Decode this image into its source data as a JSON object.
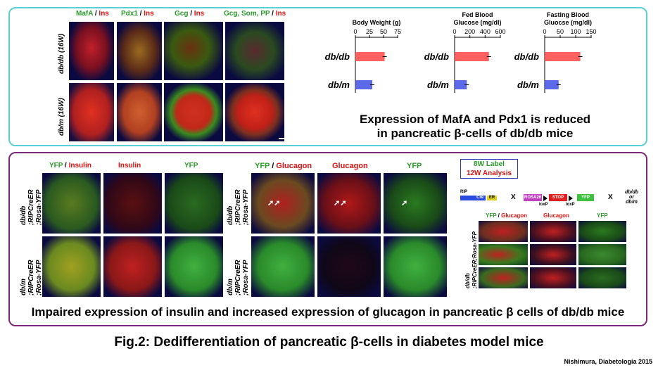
{
  "top": {
    "col_headers": [
      {
        "g": "MafA",
        "sep": " / ",
        "r": "Ins"
      },
      {
        "g": "Pdx1",
        "sep": " / ",
        "r": "Ins"
      },
      {
        "g": "Gcg",
        "sep": " / ",
        "r": "Ins"
      },
      {
        "g": "Gcg, Som, PP",
        "sep": " / ",
        "r": "Ins"
      }
    ],
    "row_labels": [
      "db/db (16W)",
      "db/m (16W)"
    ],
    "summary_line1": "Expression of MafA and Pdx1 is reduced",
    "summary_line2": "in pancreatic β-cells of db/db mice"
  },
  "chart_data": [
    {
      "type": "bar",
      "title": "Body Weight (g)",
      "categories": [
        "db/db",
        "db/m"
      ],
      "values": [
        52,
        30
      ],
      "ticks": [
        "0",
        "25",
        "50",
        "75"
      ],
      "xlim": [
        0,
        75
      ]
    },
    {
      "type": "bar",
      "title": "Fed Blood Glucose (mg/dl)",
      "title_line1": "Fed Blood",
      "title_line2": "Glucose (mg/dl)",
      "categories": [
        "db/db",
        "db/m"
      ],
      "values": [
        450,
        160
      ],
      "ticks": [
        "0",
        "200",
        "400",
        "600"
      ],
      "xlim": [
        0,
        600
      ]
    },
    {
      "type": "bar",
      "title": "Fasting Blood Gluocse (mg/dl)",
      "title_line1": "Fasting Blood",
      "title_line2": "Gluocse (mg/dl)",
      "categories": [
        "db/db",
        "db/m"
      ],
      "values": [
        115,
        45
      ],
      "ticks": [
        "0",
        "50",
        "100",
        "150"
      ],
      "xlim": [
        0,
        150
      ]
    }
  ],
  "bottom": {
    "left_headers": [
      {
        "g": "YFP",
        "sep": " / ",
        "r": "Insulin"
      },
      {
        "g": "",
        "sep": "",
        "r": "Insulin"
      },
      {
        "g": "YFP",
        "sep": "",
        "r": ""
      }
    ],
    "mid_headers": [
      {
        "g": "YFP",
        "sep": " / ",
        "r": "Glucagon"
      },
      {
        "g": "",
        "sep": "",
        "r": "Glucagon"
      },
      {
        "g": "YFP",
        "sep": "",
        "r": ""
      }
    ],
    "row_labels": [
      [
        "db/db",
        ";RIPCreER",
        ";Rosa-YFP"
      ],
      [
        "db/m",
        ";RIPCreER",
        ";Rosa-YFP"
      ]
    ],
    "label_box": {
      "line1": "8W Label",
      "line2": "12W Analysis"
    },
    "cross": {
      "rip": "RIP",
      "cre": "Cre",
      "er": "ER",
      "rosa": "ROSA26",
      "stop": "STOP",
      "yfp": "YFP",
      "loxp": "loxP",
      "x": "X",
      "target1": "db/db",
      "target2": "or",
      "target3": "db/m"
    },
    "small_headers": [
      {
        "g": "YFP",
        "sep": " / ",
        "r": "Glucagon"
      },
      {
        "g": "",
        "sep": "",
        "r": "Glucagon"
      },
      {
        "g": "YFP",
        "sep": "",
        "r": ""
      }
    ],
    "small_row_label": [
      "db/db",
      ";RIPCreER;Rosa-YFP"
    ],
    "summary": "Impaired expression of insulin and increased expression of glucagon in pancreatic β cells of db/db mice"
  },
  "figure_title": "Fig.2: Dedifferentiation of pancreatic β-cells in diabetes model mice",
  "citation": "Nishimura, Diabetologia 2015"
}
